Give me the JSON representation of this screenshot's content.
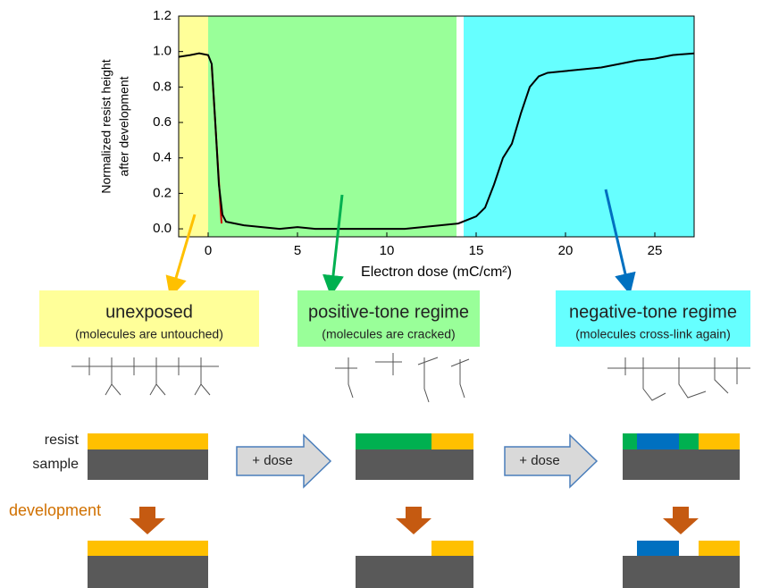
{
  "chart_data": {
    "type": "line",
    "xlabel": "Electron dose (mC/cm²)",
    "ylabel": [
      "Normalized resist height",
      "after development"
    ],
    "x": [
      -1.65,
      -1,
      -0.5,
      0,
      0.2,
      0.4,
      0.6,
      0.8,
      1,
      1.5,
      2,
      3,
      4,
      5,
      6,
      7,
      8,
      9,
      10,
      11,
      12,
      13,
      14,
      15,
      15.5,
      16,
      16.5,
      17,
      17.5,
      18,
      18.5,
      19,
      20,
      21,
      22,
      23,
      24,
      25,
      26,
      27.2
    ],
    "values": [
      0.97,
      0.98,
      0.99,
      0.98,
      0.93,
      0.6,
      0.25,
      0.08,
      0.04,
      0.03,
      0.02,
      0.01,
      0.0,
      0.01,
      0.0,
      0.0,
      0.0,
      0.0,
      0.0,
      0.0,
      0.01,
      0.02,
      0.03,
      0.07,
      0.12,
      0.25,
      0.4,
      0.48,
      0.65,
      0.8,
      0.86,
      0.88,
      0.89,
      0.9,
      0.91,
      0.93,
      0.95,
      0.96,
      0.98,
      0.99
    ],
    "color": "#000000",
    "regions": [
      {
        "from": -1.65,
        "to": 0,
        "color": "#ffff99"
      },
      {
        "from": 0,
        "to": 13.9,
        "color": "#99ff99"
      },
      {
        "from": 14.3,
        "to": 27.2,
        "color": "#66ffff"
      }
    ],
    "xlim": [
      -1.65,
      27.2
    ],
    "xticks": [
      0,
      5,
      10,
      15,
      20,
      25
    ],
    "ylim": [
      -0.045,
      1.2
    ],
    "yticks": [
      {
        "value": 0,
        "label": "0.0"
      },
      0.2,
      0.4,
      0.6,
      0.8,
      {
        "value": 1,
        "label": "1.0"
      },
      1.2
    ]
  },
  "panels": [
    {
      "title": "unexposed",
      "subtitle": "(molecules are untouched)"
    },
    {
      "title": "positive-tone regime",
      "subtitle": "(molecules are cracked)"
    },
    {
      "title": "negative-tone regime",
      "subtitle": "(molecules cross-link again)"
    }
  ],
  "labels": {
    "resist": "resist",
    "sample": "sample",
    "dose": [
      "+ dose",
      "+ dose"
    ],
    "development": "development"
  }
}
